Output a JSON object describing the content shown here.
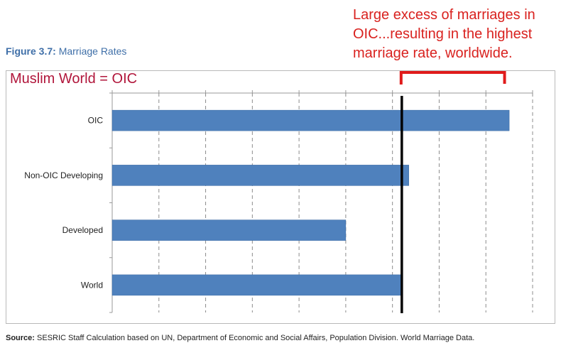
{
  "figure": {
    "label": "Figure 3.7:",
    "title": "Marriage Rates"
  },
  "overlay_label": "Muslim World = OIC",
  "annotation": {
    "lines": [
      "Large excess of marriages in",
      "OIC...resulting in the highest",
      "marriage rate, worldwide."
    ]
  },
  "source": {
    "label": "Source:",
    "text": "SESRIC Staff Calculation based on UN, Department of Economic and Social Affairs, Population Division. World Marriage Data."
  },
  "colors": {
    "bar": "#4f81bd",
    "bar_edge": "#3b6aa3",
    "grid": "#8c8c8c",
    "reference_line": "#000000",
    "bracket": "#e01b1b",
    "annotation_text": "#d9221f",
    "overlay_text": "#b1163b",
    "title_text": "#3f6fa8"
  },
  "chart_data": {
    "type": "bar",
    "orientation": "horizontal",
    "categories": [
      "OIC",
      "Non-OIC Developing",
      "Developed",
      "World"
    ],
    "values": [
      8.5,
      6.35,
      5.0,
      6.2
    ],
    "xlim": [
      0,
      9
    ],
    "reference_value": 6.2,
    "bracket": [
      6.2,
      8.4
    ],
    "grid": true,
    "show_x_tick_labels": false
  }
}
